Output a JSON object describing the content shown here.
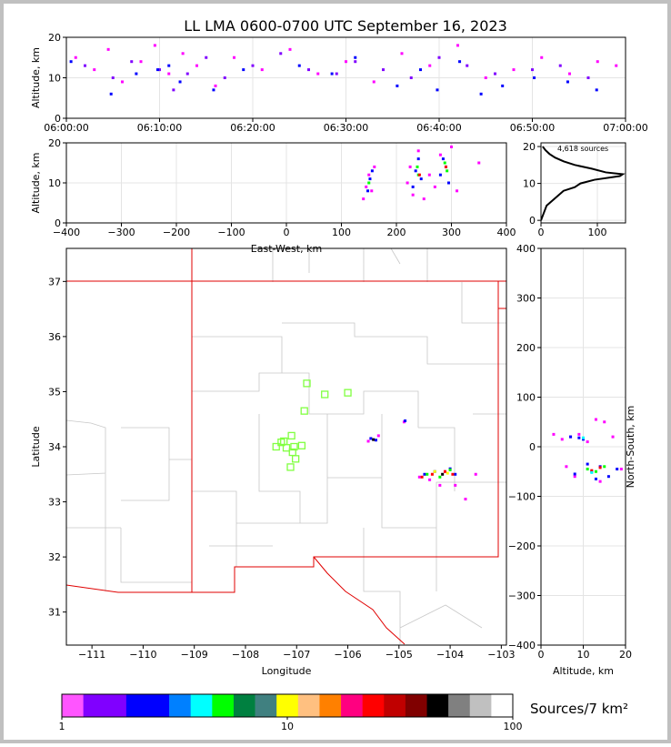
{
  "chart_data": [
    {
      "type": "scatter",
      "title": "LL LMA 0600-0700 UTC September 16, 2023",
      "ylabel": "Altitude, km",
      "xlim": [
        0,
        60
      ],
      "xticks": [
        {
          "value": 0,
          "label": "06:00:00"
        },
        {
          "value": 10,
          "label": "06:10:00"
        },
        {
          "value": 20,
          "label": "06:20:00"
        },
        {
          "value": 30,
          "label": "06:30:00"
        },
        {
          "value": 40,
          "label": "06:40:00"
        },
        {
          "value": 50,
          "label": "06:50:00"
        },
        {
          "value": 60,
          "label": "07:00:00"
        }
      ],
      "ylim": [
        0,
        20
      ],
      "yticks": [
        0,
        10,
        20
      ],
      "grid": true,
      "series": [
        {
          "color": "#ff00ff",
          "x": [
            1,
            3,
            4.5,
            6,
            8,
            9.5,
            11,
            12.5,
            14,
            16,
            18,
            21,
            24,
            27,
            30,
            33,
            36,
            39,
            42,
            45,
            48,
            51,
            54,
            57,
            59
          ],
          "values": [
            15,
            12,
            17,
            9,
            14,
            18,
            11,
            16,
            13,
            8,
            15,
            12,
            17,
            11,
            14,
            9,
            16,
            13,
            18,
            10,
            12,
            15,
            11,
            14,
            13
          ]
        },
        {
          "color": "#8000ff",
          "x": [
            2,
            5,
            7,
            10,
            11.5,
            13,
            15,
            17,
            20,
            23,
            26,
            29,
            31,
            34,
            37,
            40,
            43,
            46,
            50,
            53,
            56
          ],
          "values": [
            13,
            10,
            14,
            12,
            7,
            11,
            15,
            10,
            13,
            16,
            12,
            11,
            14,
            12,
            10,
            15,
            13,
            11,
            12,
            13,
            10
          ]
        },
        {
          "color": "#0000ff",
          "x": [
            0.5,
            4.8,
            7.5,
            9.8,
            11,
            12.2,
            15.8,
            19,
            25,
            28.5,
            31,
            35.5,
            38,
            39.8,
            42.2,
            44.5,
            46.8,
            50.2,
            53.8,
            56.9
          ],
          "values": [
            14,
            6,
            11,
            12,
            13,
            9,
            7,
            12,
            13,
            11,
            15,
            8,
            12,
            7,
            14,
            6,
            8,
            10,
            9,
            7
          ]
        }
      ]
    },
    {
      "type": "scatter",
      "xlabel": "East-West, km",
      "ylabel": "Altitude, km",
      "xlim": [
        -400,
        400
      ],
      "xticks": [
        {
          "value": -400,
          "label": "−400"
        },
        {
          "value": -300,
          "label": "−300"
        },
        {
          "value": -200,
          "label": "−200"
        },
        {
          "value": -100,
          "label": "−100"
        },
        0,
        100,
        200,
        300,
        400
      ],
      "ylim": [
        0,
        20
      ],
      "yticks": [
        0,
        10,
        20
      ],
      "grid": true,
      "series": [
        {
          "color": "#ff00ff",
          "x": [
            140,
            145,
            150,
            155,
            160,
            220,
            225,
            230,
            240,
            250,
            260,
            270,
            280,
            300,
            310,
            350
          ],
          "values": [
            6,
            9,
            12,
            8,
            14,
            10,
            14,
            7,
            18,
            6,
            12,
            9,
            17,
            19,
            8,
            15
          ]
        },
        {
          "color": "#0000ff",
          "x": [
            148,
            152,
            156,
            230,
            235,
            240,
            245,
            280,
            285,
            290,
            295
          ],
          "values": [
            8,
            11,
            13,
            9,
            13,
            16,
            11,
            12,
            16,
            14,
            10
          ]
        },
        {
          "color": "#00ff00",
          "x": [
            150,
            240,
            238,
            288,
            292
          ],
          "values": [
            10,
            12,
            14,
            15,
            13
          ]
        },
        {
          "color": "#ff0000",
          "x": [
            242,
            290
          ],
          "values": [
            12,
            14
          ]
        }
      ]
    },
    {
      "type": "line",
      "annotation": "4,618 sources",
      "color": "#000000",
      "xlim": [
        0,
        150
      ],
      "xticks": [
        0,
        100
      ],
      "ylim": [
        -0.7,
        21
      ],
      "yticks": [
        0,
        10,
        20
      ],
      "grid": true,
      "x": [
        0,
        5,
        10,
        25,
        40,
        60,
        70,
        95,
        140,
        145,
        115,
        90,
        60,
        40,
        25,
        15,
        8,
        3
      ],
      "values": [
        0,
        2,
        4,
        6,
        8,
        9,
        10,
        11,
        12,
        12.5,
        13,
        14,
        15,
        16,
        17,
        18,
        19,
        20
      ]
    },
    {
      "type": "scatter",
      "xlabel": "Longitude",
      "ylabel": "Latitude",
      "xlim": [
        -111.5,
        -102.9
      ],
      "xticks": [
        {
          "value": -111,
          "label": "−111"
        },
        {
          "value": -110,
          "label": "−110"
        },
        {
          "value": -109,
          "label": "−109"
        },
        {
          "value": -108,
          "label": "−108"
        },
        {
          "value": -107,
          "label": "−107"
        },
        {
          "value": -106,
          "label": "−106"
        },
        {
          "value": -105,
          "label": "−105"
        },
        {
          "value": -104,
          "label": "−104"
        },
        {
          "value": -103,
          "label": "−103"
        }
      ],
      "ylim": [
        30.4,
        37.6
      ],
      "yticks": [
        31,
        32,
        33,
        34,
        35,
        36,
        37
      ],
      "grid": false,
      "series": [
        {
          "color": "#ff00ff",
          "x": [
            -105.6,
            -105.4,
            -104.9,
            -104.6,
            -104.4,
            -104.2,
            -103.9,
            -103.5,
            -104.1,
            -103.7
          ],
          "values": [
            34.1,
            34.2,
            34.45,
            33.45,
            33.4,
            33.3,
            33.3,
            33.5,
            33.55,
            33.05
          ]
        },
        {
          "color": "#0000ff",
          "x": [
            -105.55,
            -105.45,
            -104.88,
            -104.5,
            -104.3,
            -104.0,
            -103.9
          ],
          "values": [
            34.15,
            34.12,
            34.47,
            33.5,
            33.55,
            33.6,
            33.5
          ]
        },
        {
          "color": "#ff0000",
          "x": [
            -104.55,
            -104.35,
            -104.1,
            -103.95
          ],
          "values": [
            33.45,
            33.5,
            33.55,
            33.5
          ]
        },
        {
          "color": "#00ff00",
          "x": [
            -104.45,
            -104.2,
            -104.0
          ],
          "values": [
            33.5,
            33.45,
            33.58
          ]
        },
        {
          "color": "#ffff00",
          "x": [
            -104.3,
            -104.05
          ],
          "values": [
            33.55,
            33.52
          ]
        },
        {
          "color": "#000000",
          "x": [
            -105.5,
            -104.15
          ],
          "values": [
            34.13,
            33.5
          ]
        },
        {
          "color": "#80ff40",
          "marker": "square-open",
          "x": [
            -106.8,
            -106.45,
            -106.0,
            -106.85,
            -107.1,
            -107.3,
            -107.4,
            -107.2,
            -107.05,
            -106.9,
            -107.08,
            -107.02,
            -107.12,
            -107.25
          ],
          "values": [
            35.15,
            34.95,
            34.98,
            34.65,
            34.2,
            34.08,
            34.0,
            33.98,
            34.0,
            34.02,
            33.9,
            33.78,
            33.63,
            34.1
          ]
        }
      ]
    },
    {
      "type": "scatter",
      "xlabel": "Altitude, km",
      "ylabel": "North-South, km",
      "xlim": [
        0,
        20
      ],
      "xticks": [
        0,
        10,
        20
      ],
      "ylim": [
        -400,
        400
      ],
      "yticks": [
        {
          "value": -400,
          "label": "−400"
        },
        {
          "value": -300,
          "label": "−300"
        },
        {
          "value": -200,
          "label": "−200"
        },
        {
          "value": -100,
          "label": "−100"
        },
        0,
        100,
        200,
        300,
        400
      ],
      "grid": true,
      "series": [
        {
          "color": "#ff00ff",
          "x": [
            3,
            5,
            7,
            9,
            11,
            13,
            15,
            17,
            6,
            8,
            14,
            19
          ],
          "values": [
            25,
            15,
            20,
            25,
            10,
            55,
            50,
            20,
            -40,
            -60,
            -70,
            -45
          ]
        },
        {
          "color": "#0000ff",
          "x": [
            7,
            9,
            10,
            12,
            14,
            16,
            18,
            8,
            11,
            13
          ],
          "values": [
            20,
            18,
            15,
            -50,
            -40,
            -60,
            -45,
            -55,
            -35,
            -65
          ]
        },
        {
          "color": "#00ff00",
          "x": [
            11,
            13,
            15
          ],
          "values": [
            -45,
            -50,
            -40
          ]
        },
        {
          "color": "#ff0000",
          "x": [
            12,
            14
          ],
          "values": [
            -48,
            -42
          ]
        },
        {
          "color": "#00ffff",
          "x": [
            10,
            12
          ],
          "values": [
            18,
            -52
          ]
        }
      ]
    },
    {
      "type": "colorbar",
      "label": "Sources/7 km²",
      "xlim": [
        1,
        100
      ],
      "log": true,
      "xticks": [
        1,
        10,
        100
      ],
      "colors": [
        "#ff55ff",
        "#8000ff",
        "#8000ff",
        "#0000ff",
        "#0000ff",
        "#0080ff",
        "#00ffff",
        "#00ff00",
        "#008040",
        "#408080",
        "#ffff00",
        "#ffc080",
        "#ff8000",
        "#ff0080",
        "#ff0000",
        "#c00000",
        "#800000",
        "#000000",
        "#808080",
        "#c0c0c0",
        "#ffffff"
      ]
    }
  ]
}
